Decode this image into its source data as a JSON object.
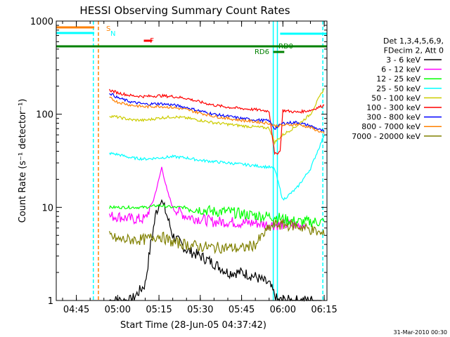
{
  "chart_data": {
    "type": "line",
    "title": "HESSI Observing Summary Count Rates",
    "xlabel": "Start Time (28-Jun-05 04:37:42)",
    "ylabel": "Count Rate (s⁻¹ detector⁻¹)",
    "y_scale": "log",
    "ylim": [
      1,
      1000
    ],
    "xlim": [
      "04:37:42",
      "06:16:00"
    ],
    "x_ticks": [
      "04:45",
      "05:00",
      "05:15",
      "05:30",
      "05:45",
      "06:00",
      "06:15"
    ],
    "y_ticks": [
      "1",
      "10",
      "100",
      "1000"
    ],
    "legend_header": [
      "Det 1,3,4,5,6,9,",
      "FDecim 2, Att 0"
    ],
    "legend_placement": "right",
    "series": [
      {
        "name": "3 - 6 keV",
        "color": "#000000",
        "x": [
          "04:57",
          "05:05",
          "05:10",
          "05:12",
          "05:14",
          "05:16",
          "05:18",
          "05:20",
          "05:25",
          "05:30",
          "05:35",
          "05:40",
          "05:45",
          "05:50",
          "05:55",
          "05:58",
          "06:00",
          "06:05",
          "06:10",
          "06:14"
        ],
        "y": [
          1,
          1,
          1.5,
          4,
          9,
          12,
          8,
          5,
          3.5,
          3,
          2.5,
          2,
          2,
          1.8,
          1.5,
          1,
          1,
          1,
          1,
          1
        ]
      },
      {
        "name": "6 - 12 keV",
        "color": "#ff00ff",
        "x": [
          "04:57",
          "05:00",
          "05:05",
          "05:10",
          "05:13",
          "05:15",
          "05:16",
          "05:18",
          "05:20",
          "05:25",
          "05:30",
          "05:35",
          "05:40",
          "05:45",
          "05:50",
          "05:55",
          "06:00",
          "06:05",
          "06:08"
        ],
        "y": [
          8,
          8,
          7.5,
          7.5,
          12,
          20,
          27,
          15,
          10,
          8,
          7.5,
          7,
          7,
          6.8,
          6.8,
          6.5,
          6.5,
          6.5,
          6.5
        ]
      },
      {
        "name": "12 - 25 keV",
        "color": "#00ff00",
        "x": [
          "04:57",
          "05:00",
          "05:05",
          "05:10",
          "05:15",
          "05:20",
          "05:25",
          "05:30",
          "05:35",
          "05:40",
          "05:45",
          "05:50",
          "05:55",
          "05:57",
          "06:00",
          "06:05",
          "06:10",
          "06:15"
        ],
        "y": [
          10,
          10,
          10,
          10,
          10.5,
          10,
          10,
          9.5,
          9,
          9,
          8.5,
          8.2,
          8,
          8,
          7.5,
          7,
          7,
          7
        ]
      },
      {
        "name": "25 - 50 keV",
        "color": "#00ffff",
        "x": [
          "04:57",
          "05:00",
          "05:05",
          "05:10",
          "05:15",
          "05:20",
          "05:25",
          "05:30",
          "05:35",
          "05:40",
          "05:45",
          "05:50",
          "05:55",
          "05:57",
          "06:00",
          "06:05",
          "06:10",
          "06:15"
        ],
        "y": [
          38,
          37,
          34,
          33,
          34,
          35,
          34,
          32,
          31,
          30,
          29,
          28,
          27,
          26,
          12,
          16,
          26,
          60
        ]
      },
      {
        "name": "50 - 100 keV",
        "color": "#cccc00",
        "x": [
          "04:57",
          "05:00",
          "05:05",
          "05:10",
          "05:15",
          "05:20",
          "05:25",
          "05:30",
          "05:35",
          "05:40",
          "05:45",
          "05:50",
          "05:55",
          "05:57",
          "06:00",
          "06:05",
          "06:10",
          "06:15"
        ],
        "y": [
          96,
          93,
          87,
          86,
          91,
          94,
          91,
          86,
          81,
          78,
          75,
          73,
          71,
          50,
          60,
          75,
          100,
          190
        ]
      },
      {
        "name": "100 - 300 keV",
        "color": "#ff0000",
        "x": [
          "04:57",
          "05:00",
          "05:05",
          "05:10",
          "05:15",
          "05:20",
          "05:25",
          "05:30",
          "05:35",
          "05:40",
          "05:45",
          "05:50",
          "05:55",
          "05:57",
          "05:59",
          "06:00",
          "06:05",
          "06:10",
          "06:15"
        ],
        "y": [
          182,
          170,
          158,
          155,
          158,
          155,
          148,
          135,
          125,
          119,
          115,
          112,
          108,
          37,
          40,
          110,
          105,
          110,
          125
        ]
      },
      {
        "name": "300 - 800 keV",
        "color": "#0000ff",
        "x": [
          "04:57",
          "05:00",
          "05:05",
          "05:10",
          "05:15",
          "05:20",
          "05:25",
          "05:30",
          "05:35",
          "05:40",
          "05:45",
          "05:50",
          "05:55",
          "05:57",
          "06:00",
          "06:05",
          "06:10",
          "06:15"
        ],
        "y": [
          170,
          150,
          135,
          128,
          130,
          126,
          118,
          108,
          100,
          95,
          90,
          87,
          85,
          70,
          80,
          82,
          75,
          65
        ]
      },
      {
        "name": "800 - 7000 keV",
        "color": "#ff8000",
        "x": [
          "04:57",
          "05:00",
          "05:05",
          "05:10",
          "05:15",
          "05:20",
          "05:25",
          "05:30",
          "05:35",
          "05:40",
          "05:45",
          "05:50",
          "05:55",
          "05:57",
          "06:00",
          "06:05",
          "06:10",
          "06:15"
        ],
        "y": [
          150,
          135,
          125,
          120,
          122,
          118,
          112,
          103,
          95,
          90,
          86,
          83,
          80,
          75,
          76,
          78,
          72,
          62
        ]
      },
      {
        "name": "7000 - 20000 keV",
        "color": "#808000",
        "x": [
          "04:57",
          "05:00",
          "05:05",
          "05:10",
          "05:15",
          "05:20",
          "05:25",
          "05:30",
          "05:35",
          "05:40",
          "05:45",
          "05:50",
          "05:55",
          "05:57",
          "06:00",
          "06:05",
          "06:10",
          "06:15"
        ],
        "y": [
          5,
          4.5,
          4.5,
          4.5,
          5,
          4.2,
          4,
          3.8,
          3.7,
          3.7,
          3.6,
          4,
          6,
          6.5,
          6.5,
          6.3,
          5.8,
          5
        ]
      }
    ],
    "state_flags": [
      {
        "label": "S",
        "color": "#ff8000",
        "x_start": "04:37:42",
        "x_end": "04:51:30"
      },
      {
        "label": "N",
        "color": "#00ffff",
        "x_start": "04:37:42",
        "x_end": "04:51:30"
      },
      {
        "label": "F",
        "color": "#ff0000",
        "x_start": "05:09:30",
        "x_end": "05:12:30"
      },
      {
        "label": "RD0",
        "color": "#008000",
        "x_start": "04:37:42",
        "x_end": "06:16:00"
      },
      {
        "label": "RD6",
        "color": "#008000",
        "x_start": "05:56:30",
        "x_end": "06:00:30"
      },
      {
        "label": "N",
        "color": "#00ffff",
        "x_start": "05:59:00",
        "x_end": "06:16:00"
      }
    ],
    "vertical_markers": [
      {
        "x": "04:51:10",
        "color": "#00ffff",
        "style": "dashed"
      },
      {
        "x": "04:53:00",
        "color": "#ff8000",
        "style": "dashed"
      },
      {
        "x": "05:56:30",
        "color": "#00ffff",
        "style": "solid"
      },
      {
        "x": "05:58:00",
        "color": "#00ffff",
        "style": "solid"
      },
      {
        "x": "06:14:30",
        "color": "#00ffff",
        "style": "dashed"
      }
    ],
    "footer_timestamp": "31-Mar-2010 00:30"
  }
}
